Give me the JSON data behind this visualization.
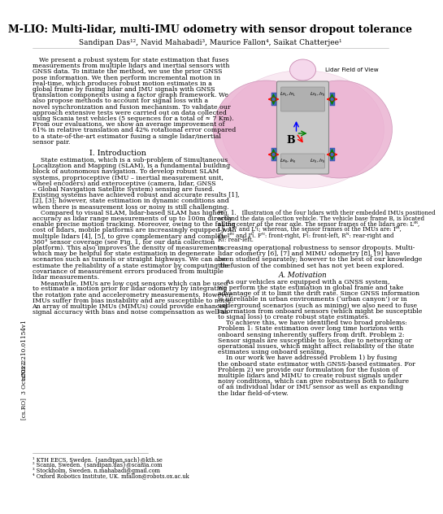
{
  "title_line1": "M-LIO: Multi-lidar, multi-IMU odometry with sensor dropout tolerance",
  "authors": "Sandipan Das¹², Navid Mahabadi³, Maurice Fallon⁴, Saikat Chatterjee¹",
  "abstract_lines": [
    "We present a robust system for state estimation that fuses",
    "measurements from multiple lidars and inertial sensors with",
    "GNSS data. To initiate the method, we use the prior GNSS",
    "pose information. We then perform incremental motion in",
    "real-time, which produces robust motion estimates in a",
    "global frame by fusing lidar and IMU signals with GNSS",
    "translation components using a factor graph framework. We",
    "also propose methods to account for signal loss with a",
    "novel synchronization and fusion mechanism. To validate our",
    "approach extensive tests were carried out on data collected",
    "using Scania test vehicles (5 sequences for a total of ≈ 7 Km).",
    "From our evaluations, we show an average improvement of",
    "61% in relative translation and 42% rotational error compared",
    "to a state-of-the-art estimator fusing a single lidar/inertial",
    "sensor pair."
  ],
  "intro_title": "I. Introduction",
  "intro_lines": [
    "    State estimation, which is a sub-problem of Simultaneous",
    "Localization and Mapping (SLAM), is a fundamental building",
    "block of autonomous navigation. To develop robust SLAM",
    "systems, proprioceptive (IMU – inertial measurement unit,",
    "wheel encoders) and exteroceptive (camera, lidar, GNSS",
    "– Global Navigation Satellite System) sensing are fused.",
    "Existing systems have achieved robust and accurate results [1],",
    "[2], [3]; however, state estimation in dynamic conditions and",
    "when there is measurement loss or noisy is still challenging.",
    "    Compared to visual SLAM, lidar-based SLAM has higher",
    "accuracy as lidar range measurements of up to 100m directly",
    "enable precise motion tracking. Moreover, owing to the falling",
    "cost of lidars, mobile platforms are increasingly equipped with",
    "multiple lidars [4], [5], to give complementary and complete",
    "360° sensor coverage (see Fig. 1, for our data collection",
    "platform). This also improves the density of measurements",
    "which may be helpful for state estimation in degenerate",
    "scenarios such as tunnels or straight highways. We can also",
    "estimate the reliability of a state estimator by computing the",
    "covariance of measurement errors produced from multiple",
    "lidar measurements.",
    "    Meanwhile, IMUs are low cost sensors which can be used",
    "to estimate a motion prior for lidar odometry by integrating",
    "the rotation rate and accelerometry measurements. However,",
    "IMUs suffer from bias instability and are susceptible to noise.",
    "An array of multiple IMUs (MIMUs) could provide enhanced",
    "signal accuracy with bias and noise compensation as well as"
  ],
  "right_col_lines1": [
    "increasing operational robustness to sensor dropouts. Multi-",
    "lidar odometry [6], [7] and MIMU odometry [8], [9] have",
    "been studied separately; however to the best of our knowledge",
    "the fusion of the combined set has not yet been explored."
  ],
  "motivation_title": "A. Motivation",
  "motivation_lines": [
    "    As our vehicles are equipped with a GNSS system,",
    "we perform the state estimation in global frame and take",
    "advantage of it to limit the drift rate. Since GNSS information",
    "is unreliable in urban environments (‘urban canyon’) or in",
    "underground scenarios (such as mining) we also need to fuse",
    "information from onboard sensors (which might be susceptible",
    "to signal loss) to create robust state estimates.",
    "    To achieve this, we have identified two broad problems:",
    "Problem 1: State estimation over long time horizons with",
    "onboard sensing inherently suffers from drift. Problem 2:",
    "Sensor signals are susceptible to loss, due to networking or",
    "operational issues, which might affect reliability of the state",
    "estimates using onboard sensing.",
    "    In our work we have addressed Problem 1) by fusing",
    "the onboard state estimator with GNSS-based estimates. For",
    "Problem 2) we provide our formulation for the fusion of",
    "multiple lidars and MIMU to create robust signals under",
    "noisy conditions, which can give robustness both to failure",
    "of an individual lidar or IMU sensor as well as expanding",
    "the lidar field-of-view."
  ],
  "fig_caption_lines": [
    "Fig. 1.   Illustration of the four lidars with their embedded IMUs positioned",
    "around the data collection vehicle. The vehicle base frame B, is located",
    "at the center of the rear axle. The sensor frames of the lidars are: Lᶠᴿ,",
    "Lᶠἶ, Lᶠᴺ and Lᶠἶ; whereas, the sensor frames of the IMUs are: Iᶠᴿ,",
    "Iᶠἶ, Iᶠᴺ and Iᶠἶ. Fᴺ: front-right, Fἶ: front-left, Rᴺ: rear-right and",
    "Rἶ: rear-left."
  ],
  "footnotes": [
    "¹ KTH EECS, Sweden. {sandipan,sach}@kth.se",
    "² Scania, Sweden. {sandipan.das}@scania.com",
    "³ Stockholm, Sweden. n.mahabadi@gmail.com",
    "⁴ Oxford Robotics Institute, UK. mfallon@robots.ox.ac.uk"
  ],
  "arxiv_label": "arXiv:2210.01154v1",
  "date_label": "[cs.RO]  3 Oct 2022",
  "background_color": "#ffffff",
  "text_color": "#000000",
  "body_fontsize": 5.6,
  "title_fontsize": 9.0,
  "author_fontsize": 6.5,
  "section_fontsize": 6.8,
  "fig_cap_fontsize": 5.0,
  "footnote_fontsize": 4.8,
  "arxiv_fontsize": 5.2
}
